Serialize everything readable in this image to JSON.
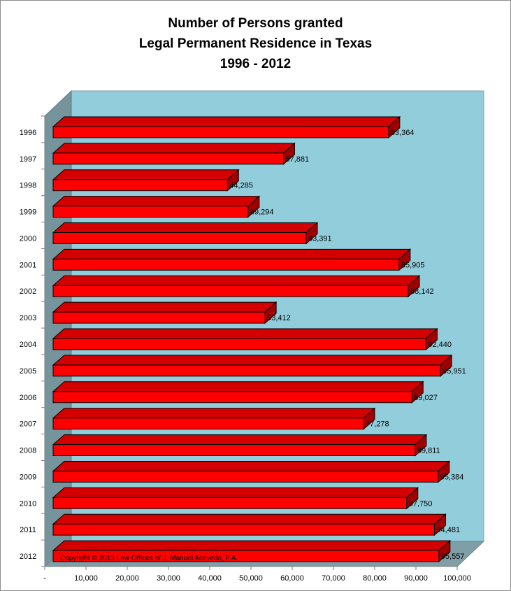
{
  "chart_data": {
    "type": "bar",
    "orientation": "horizontal",
    "title_lines": [
      "Number of Persons granted",
      "Legal Permanent Residence in Texas",
      "1996 - 2012"
    ],
    "categories": [
      "1996",
      "1997",
      "1998",
      "1999",
      "2000",
      "2001",
      "2002",
      "2003",
      "2004",
      "2005",
      "2006",
      "2007",
      "2008",
      "2009",
      "2010",
      "2011",
      "2012"
    ],
    "values": [
      83364,
      57881,
      44285,
      49294,
      63391,
      85905,
      88142,
      53412,
      92440,
      95951,
      89027,
      77278,
      89811,
      95384,
      87750,
      94481,
      95557
    ],
    "value_labels": [
      "83,364",
      "57,881",
      "44,285",
      "49,294",
      "63,391",
      "85,905",
      "88,142",
      "53,412",
      "92,440",
      "95,951",
      "89,027",
      "77,278",
      "89,811",
      "95,384",
      "87,750",
      "94,481",
      "95,557"
    ],
    "x_ticks": [
      "-",
      "10,000",
      "20,000",
      "30,000",
      "40,000",
      "50,000",
      "60,000",
      "70,000",
      "80,000",
      "90,000",
      "100,000"
    ],
    "xlim": [
      0,
      100000
    ],
    "xlabel": "",
    "ylabel": "",
    "grid": false,
    "legend": "none",
    "copyright": "Copyright © 2013 Law Offices of J. Manuel Acevedo, P.A.",
    "colors": {
      "bar_front": "#ff0000",
      "bar_top": "#d40000",
      "bar_side": "#a00000",
      "back_wall": "#92cddc",
      "side_wall": "#76949c",
      "floor": "#7f9ea6"
    }
  }
}
